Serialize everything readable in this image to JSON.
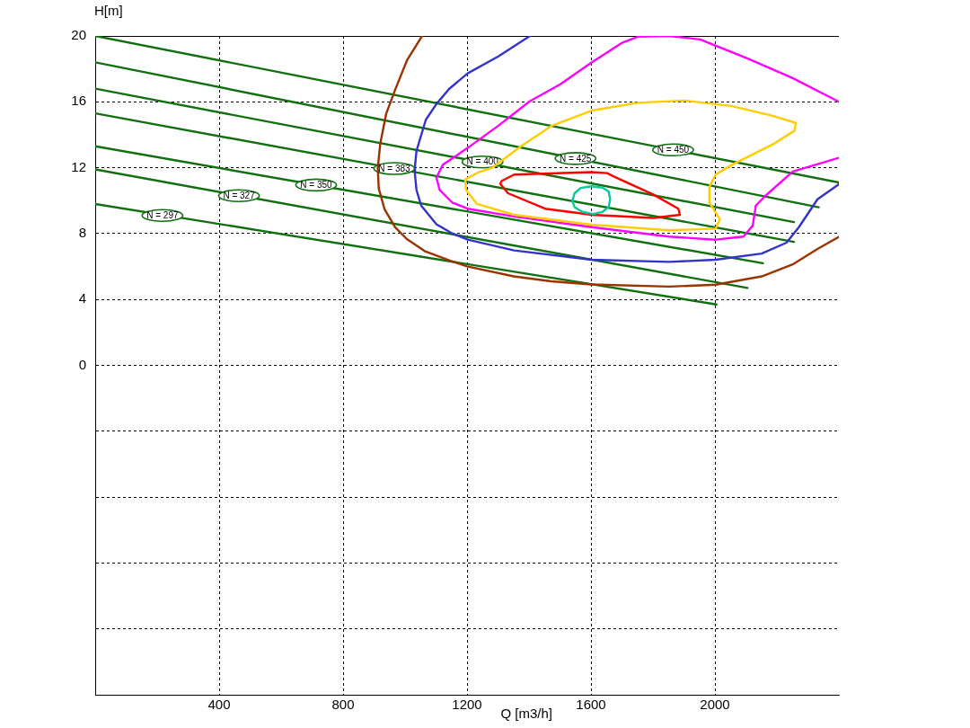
{
  "chart_data": {
    "type": "line",
    "xlabel": "Q [m3/h]",
    "ylabel": "H[m]",
    "xlim": [
      0,
      2400
    ],
    "ylim": [
      -20,
      20
    ],
    "xticks": [
      {
        "value": 0,
        "label": null
      },
      400,
      800,
      1200,
      1600,
      2000
    ],
    "yticks": [
      {
        "value": -20,
        "label": null
      },
      {
        "value": -16,
        "label": null
      },
      {
        "value": -12,
        "label": null
      },
      {
        "value": -8,
        "label": null
      },
      {
        "value": -4,
        "label": null
      },
      0,
      4,
      8,
      12,
      16,
      20
    ],
    "grid": true,
    "series": [
      {
        "color": "#00cc99",
        "x": [
          1602,
          1637,
          1657,
          1662,
          1657,
          1637,
          1607,
          1572,
          1547,
          1540,
          1547,
          1567,
          1602,
          1637
        ],
        "values": [
          10.87,
          10.79,
          10.55,
          10.08,
          9.61,
          9.32,
          9.19,
          9.32,
          9.61,
          9.98,
          10.45,
          10.77,
          10.87,
          10.79
        ]
      },
      {
        "color": "#ff0000",
        "x": [
          1312,
          1352,
          1602,
          1652,
          1672,
          1802,
          1882,
          1887,
          1802,
          1602,
          1452,
          1332,
          1307,
          1312,
          1352
        ],
        "values": [
          11.2,
          11.58,
          11.73,
          11.67,
          11.48,
          10.36,
          9.51,
          9.14,
          8.95,
          9.14,
          9.51,
          10.45,
          11.02,
          11.2,
          11.58
        ]
      },
      {
        "color": "#ffcc00",
        "x": [
          1194,
          1238,
          1281,
          1316,
          1374,
          1472,
          1602,
          1751,
          1901,
          2052,
          2181,
          2261,
          2257,
          2191,
          2052,
          2002,
          1982,
          1982,
          2016,
          2002,
          1852,
          1602,
          1352,
          1232,
          1197,
          1194,
          1238
        ],
        "values": [
          11.28,
          11.73,
          12.0,
          12.48,
          13.3,
          14.53,
          15.47,
          15.94,
          16.08,
          15.75,
          15.18,
          14.72,
          14.25,
          13.46,
          12.15,
          11.58,
          10.83,
          9.89,
          8.86,
          8.3,
          8.2,
          8.54,
          9.14,
          9.8,
          10.64,
          11.28,
          11.73
        ]
      },
      {
        "color": "#ff00ff",
        "x": [
          2400,
          2251,
          2102,
          1952,
          1852,
          1751,
          1702,
          1602,
          1501,
          1402,
          1301,
          1202,
          1122,
          1101,
          1112,
          1152,
          1202,
          1352,
          1602,
          1852,
          2002,
          2092,
          2122,
          2132,
          2161,
          2251,
          2400
        ],
        "values": [
          16.0,
          17.44,
          18.66,
          19.79,
          20,
          19.95,
          19.6,
          18.39,
          17.07,
          16.03,
          14.55,
          13.2,
          12.18,
          11.39,
          10.64,
          9.89,
          9.51,
          9.04,
          8.39,
          7.82,
          7.63,
          7.82,
          8.48,
          9.7,
          10.26,
          11.77,
          12.6
        ]
      },
      {
        "color": "#3333cc",
        "x": [
          1403,
          1301,
          1202,
          1142,
          1101,
          1067,
          1052,
          1037,
          1032,
          1032,
          1037,
          1052,
          1101,
          1152,
          1202,
          1352,
          1602,
          1852,
          2002,
          2151,
          2231,
          2271,
          2331,
          2400
        ],
        "values": [
          20,
          18.76,
          17.73,
          16.78,
          15.86,
          14.91,
          13.97,
          13.03,
          12.1,
          11.58,
          10.64,
          9.7,
          8.57,
          8.01,
          7.63,
          6.98,
          6.41,
          6.28,
          6.41,
          6.79,
          7.45,
          8.39,
          10.08,
          11.0
        ]
      },
      {
        "color": "#993300",
        "x": [
          1055,
          1007,
          968,
          939,
          920,
          912,
          915,
          934,
          968,
          1007,
          1065,
          1142,
          1200,
          1351,
          1472,
          1602,
          1852,
          2002,
          2151,
          2251,
          2331,
          2400
        ],
        "values": [
          20,
          18.55,
          16.73,
          15.27,
          13.46,
          12.0,
          10.74,
          9.47,
          8.38,
          7.65,
          6.92,
          6.38,
          6.01,
          5.4,
          5.1,
          4.91,
          4.78,
          4.9,
          5.4,
          6.13,
          7.07,
          7.8
        ]
      },
      {
        "color": "#107010",
        "x": [
          0,
          2005
        ],
        "values": [
          9.8,
          3.7
        ]
      },
      {
        "color": "#107010",
        "x": [
          0,
          2105
        ],
        "values": [
          11.9,
          4.7
        ]
      },
      {
        "color": "#107010",
        "x": [
          0,
          2155
        ],
        "values": [
          13.3,
          6.2
        ]
      },
      {
        "color": "#107010",
        "x": [
          0,
          2255
        ],
        "values": [
          15.3,
          7.5
        ]
      },
      {
        "color": "#107010",
        "x": [
          0,
          2255
        ],
        "values": [
          16.8,
          8.7
        ]
      },
      {
        "color": "#107010",
        "x": [
          0,
          2335
        ],
        "values": [
          18.4,
          9.6
        ]
      },
      {
        "color": "#107010",
        "x": [
          0,
          2400
        ],
        "values": [
          20,
          11.1
        ]
      }
    ],
    "annotations": [
      {
        "text": "N = 297",
        "x": 217,
        "y": 9.1
      },
      {
        "text": "N = 327",
        "x": 464,
        "y": 10.3
      },
      {
        "text": "N = 350",
        "x": 713,
        "y": 10.95
      },
      {
        "text": "N = 383",
        "x": 965,
        "y": 11.95
      },
      {
        "text": "N = 400",
        "x": 1250,
        "y": 12.35
      },
      {
        "text": "N = 425",
        "x": 1550,
        "y": 12.56
      },
      {
        "text": "N = 450",
        "x": 1865,
        "y": 13.08
      }
    ]
  }
}
